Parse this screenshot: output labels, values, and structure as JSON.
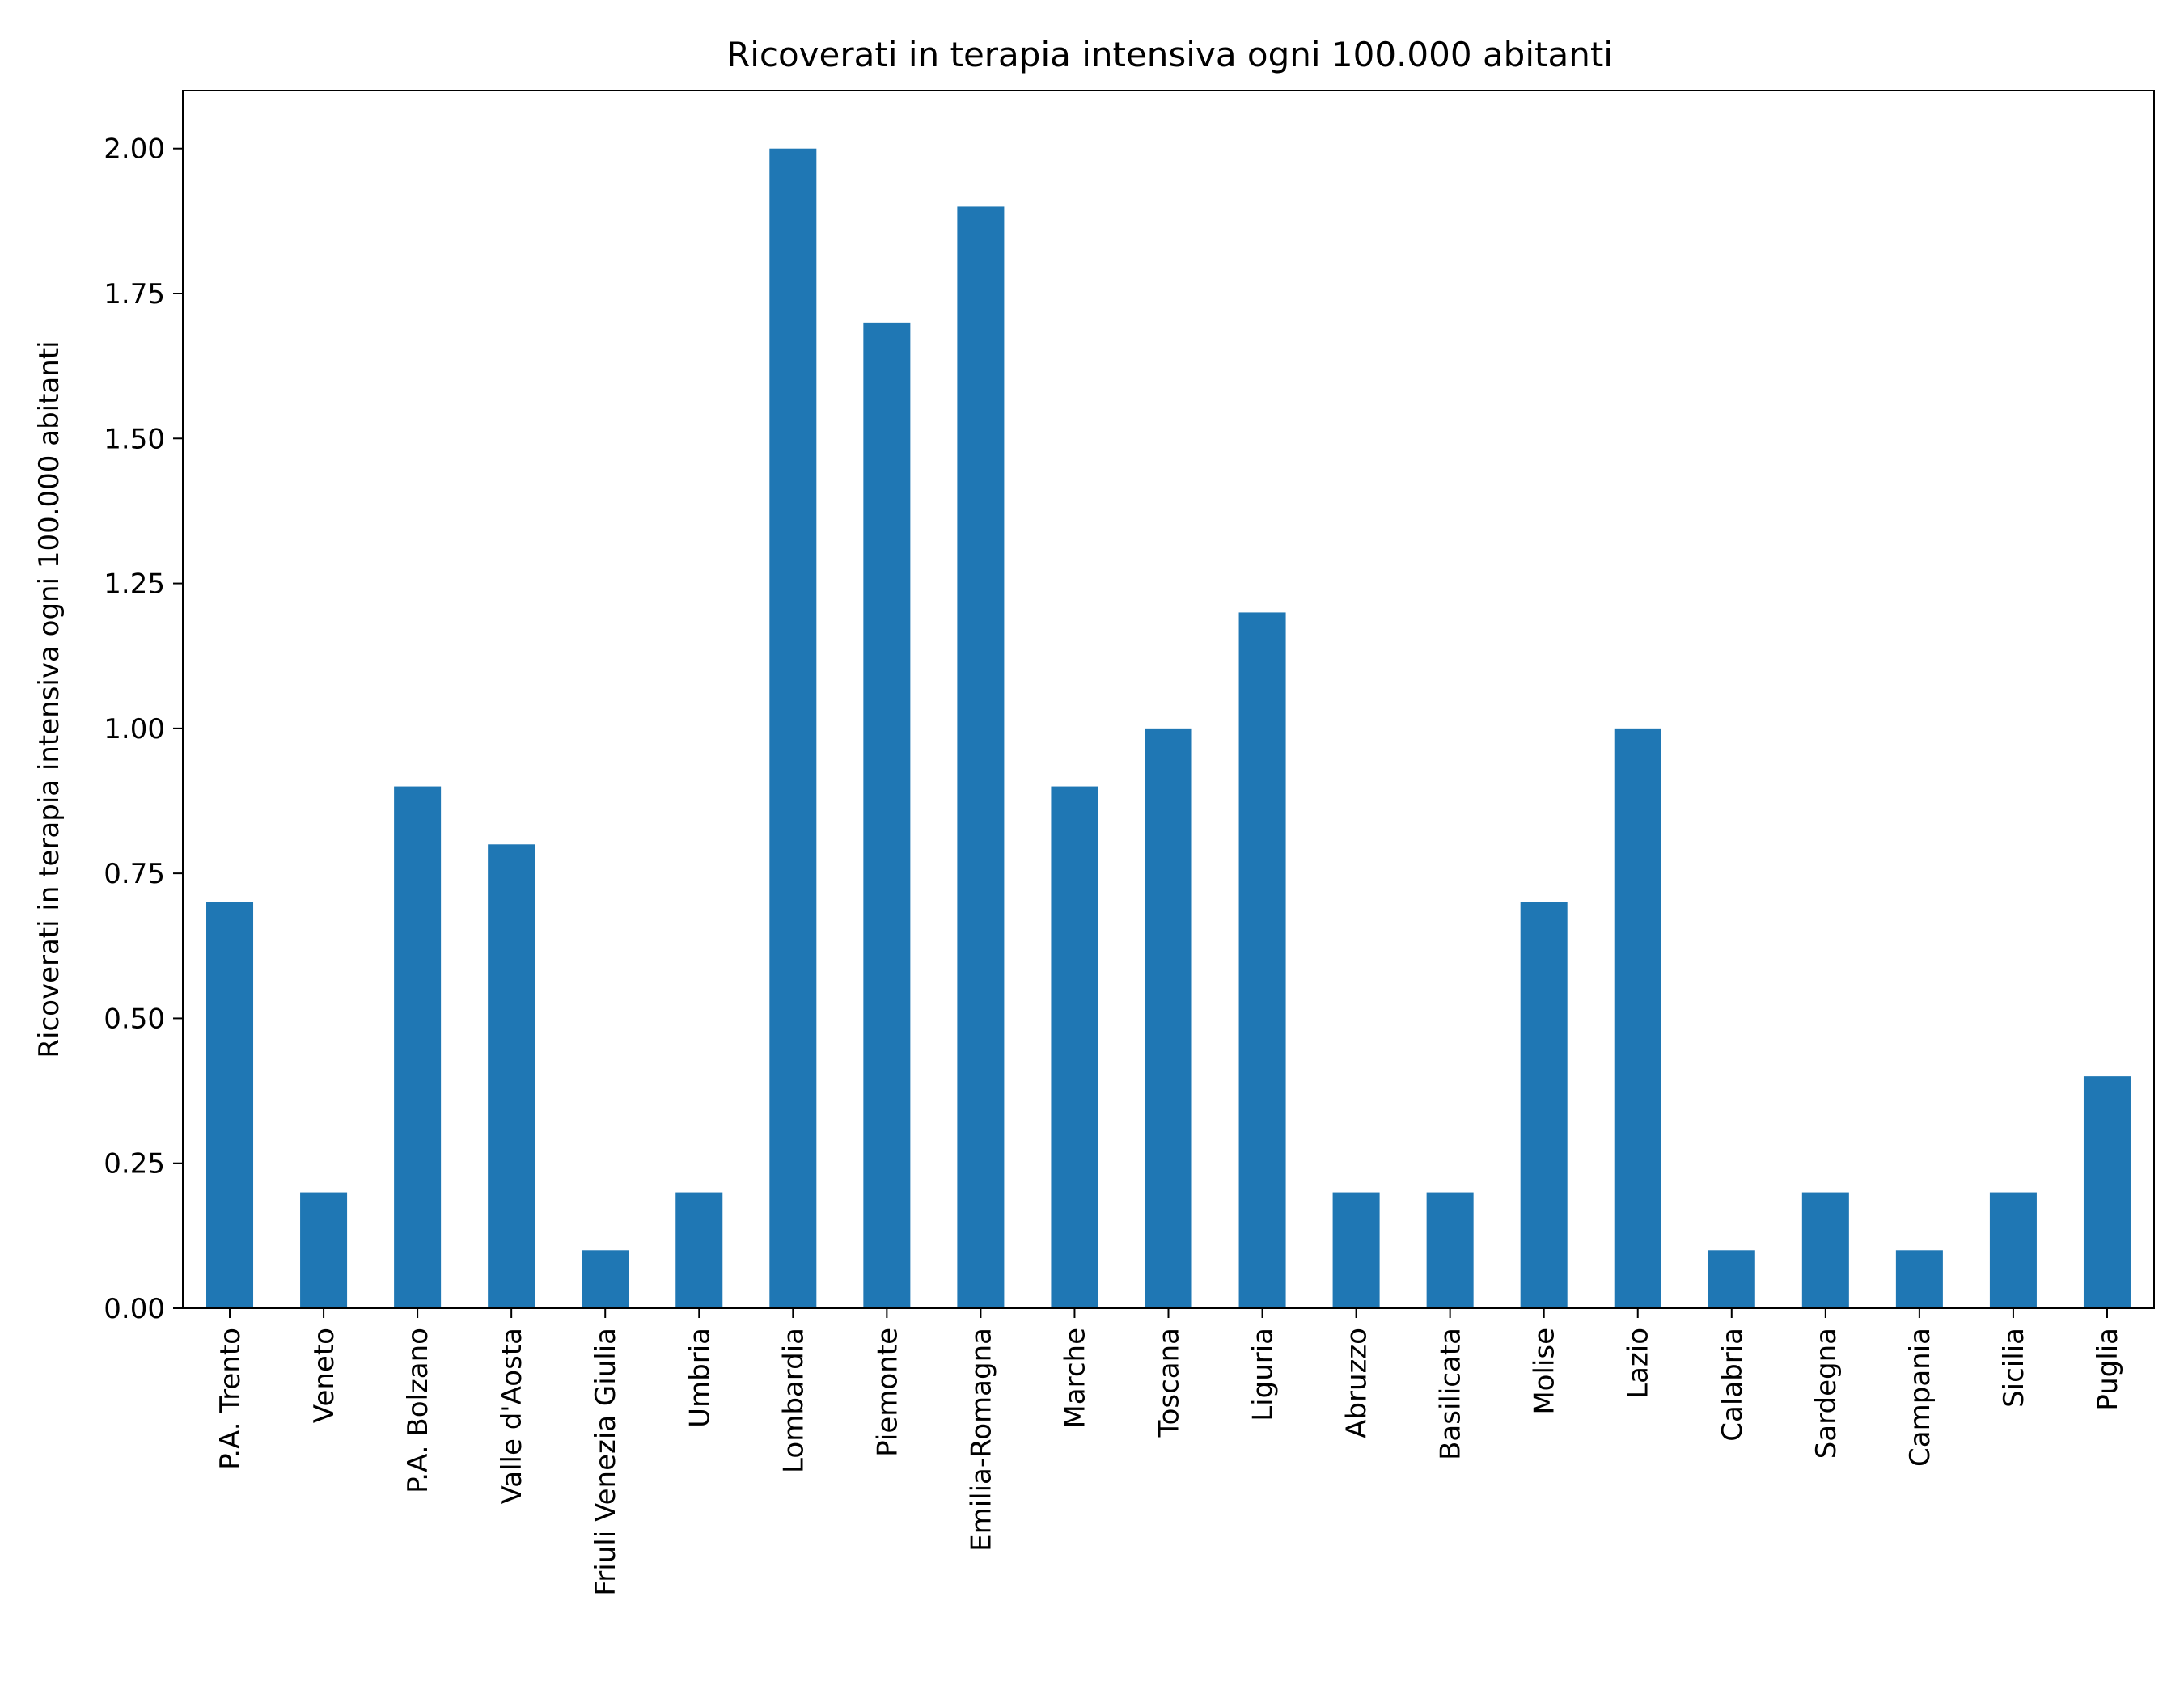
{
  "chart_data": {
    "type": "bar",
    "title": "Ricoverati in terapia intensiva ogni 100.000 abitanti",
    "xlabel": "",
    "ylabel": "Ricoverati in terapia intensiva ogni 100.000 abitanti",
    "categories": [
      "P.A. Trento",
      "Veneto",
      "P.A. Bolzano",
      "Valle d'Aosta",
      "Friuli Venezia Giulia",
      "Umbria",
      "Lombardia",
      "Piemonte",
      "Emilia-Romagna",
      "Marche",
      "Toscana",
      "Liguria",
      "Abruzzo",
      "Basilicata",
      "Molise",
      "Lazio",
      "Calabria",
      "Sardegna",
      "Campania",
      "Sicilia",
      "Puglia"
    ],
    "values": [
      0.7,
      0.2,
      0.9,
      0.8,
      0.1,
      0.2,
      2.0,
      1.7,
      1.9,
      0.9,
      1.0,
      1.2,
      0.2,
      0.2,
      0.7,
      1.0,
      0.1,
      0.2,
      0.1,
      0.2,
      0.4
    ],
    "ylim": [
      0,
      2.1
    ],
    "yticks": [
      0,
      0.25,
      0.5,
      0.75,
      1.0,
      1.25,
      1.5,
      1.75,
      2.0
    ],
    "ytick_labels": [
      "0.00",
      "0.25",
      "0.50",
      "0.75",
      "1.00",
      "1.25",
      "1.50",
      "1.75",
      "2.00"
    ],
    "grid": false,
    "legend": "none",
    "bar_color": "#1f77b4"
  }
}
